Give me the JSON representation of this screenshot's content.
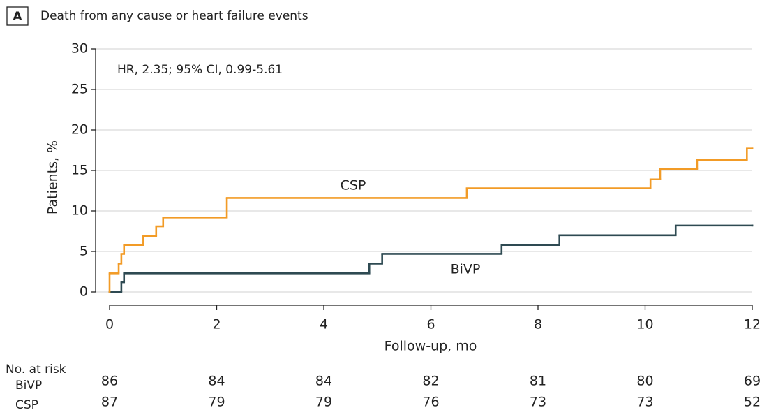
{
  "chart_data": {
    "type": "line",
    "step": "post",
    "panel_label": "A",
    "title": "Death from any cause or heart failure events",
    "annotation": "HR, 2.35; 95% CI, 0.99-5.61",
    "xlabel": "Follow-up, mo",
    "ylabel": "Patients, %",
    "xlim": [
      0,
      12
    ],
    "ylim": [
      0,
      30
    ],
    "xticks": [
      0,
      2,
      4,
      6,
      8,
      10,
      12
    ],
    "yticks": [
      0,
      5,
      10,
      15,
      20,
      25,
      30
    ],
    "grid": true,
    "series": [
      {
        "name": "BiVP",
        "color": "#2e4a52",
        "x": [
          0,
          0.22,
          0.27,
          4.85,
          5.09,
          7.32,
          8.4,
          10.57,
          12
        ],
        "values": [
          0,
          1.2,
          2.3,
          3.5,
          4.7,
          5.8,
          7.0,
          8.2,
          8.2
        ]
      },
      {
        "name": "CSP",
        "color": "#f29b26",
        "x": [
          0,
          0,
          0.17,
          0.22,
          0.27,
          0.63,
          0.87,
          1.0,
          2.19,
          6.67,
          10.1,
          10.28,
          10.97,
          11.9,
          12
        ],
        "values": [
          0,
          2.3,
          3.5,
          4.7,
          5.8,
          6.9,
          8.1,
          9.2,
          11.6,
          12.8,
          13.9,
          15.2,
          16.3,
          17.7,
          17.7
        ]
      }
    ],
    "risk_table": {
      "title": "No. at risk",
      "rows": [
        {
          "name": "BiVP",
          "values": [
            86,
            84,
            84,
            82,
            81,
            80,
            69
          ]
        },
        {
          "name": "CSP",
          "values": [
            87,
            79,
            79,
            76,
            73,
            73,
            52
          ]
        }
      ]
    }
  }
}
